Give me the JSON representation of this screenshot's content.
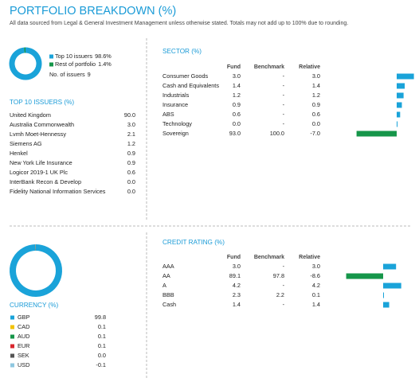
{
  "header": {
    "title": "PORTFOLIO BREAKDOWN (%)",
    "note": "All data sourced from Legal & General Investment Management unless otherwise stated. Totals may not add up to 100% due to rounding."
  },
  "positive_color": "#1aa3d9",
  "negative_color": "#16964a",
  "issuers_split": {
    "items": [
      {
        "name": "Top 10 issuers",
        "value": 98.6,
        "label": "98.6%",
        "color": "#1aa3d9"
      },
      {
        "name": "Rest of portfolio",
        "value": 1.4,
        "label": "1.4%",
        "color": "#16964a"
      }
    ],
    "count_label": "No. of issuers",
    "count": 9
  },
  "top10": {
    "title": "TOP 10 ISSUERS (%)",
    "rows": [
      {
        "name": "United Kingdom",
        "value": "90.0"
      },
      {
        "name": "Australia Commonwealth",
        "value": "3.0"
      },
      {
        "name": "Lvmh Moet-Hennessy",
        "value": "2.1"
      },
      {
        "name": "Siemens AG",
        "value": "1.2"
      },
      {
        "name": "Henkel",
        "value": "0.9"
      },
      {
        "name": "New York Life Insurance",
        "value": "0.9"
      },
      {
        "name": "Logicor 2019-1 UK Plc",
        "value": "0.6"
      },
      {
        "name": "InterBank Recon & Develop",
        "value": "0.0"
      },
      {
        "name": "Fidelity National Information Services",
        "value": "0.0"
      }
    ]
  },
  "sector": {
    "title": "SECTOR (%)",
    "columns": [
      "Fund",
      "Benchmark",
      "Relative"
    ],
    "rows": [
      {
        "name": "Consumer Goods",
        "fund": "3.0",
        "benchmark": "-",
        "relative": {
          "value": 3.0,
          "label": "3.0"
        }
      },
      {
        "name": "Cash and Equivalents",
        "fund": "1.4",
        "benchmark": "-",
        "relative": {
          "value": 1.4,
          "label": "1.4"
        }
      },
      {
        "name": "Industrials",
        "fund": "1.2",
        "benchmark": "-",
        "relative": {
          "value": 1.2,
          "label": "1.2"
        }
      },
      {
        "name": "Insurance",
        "fund": "0.9",
        "benchmark": "-",
        "relative": {
          "value": 0.9,
          "label": "0.9"
        }
      },
      {
        "name": "ABS",
        "fund": "0.6",
        "benchmark": "-",
        "relative": {
          "value": 0.6,
          "label": "0.6"
        }
      },
      {
        "name": "Technology",
        "fund": "0.0",
        "benchmark": "-",
        "relative": {
          "value": 0.0,
          "label": "0.0"
        }
      },
      {
        "name": "Sovereign",
        "fund": "93.0",
        "benchmark": "100.0",
        "relative": {
          "value": -7.0,
          "label": "-7.0"
        }
      }
    ]
  },
  "credit": {
    "title": "CREDIT RATING (%)",
    "columns": [
      "Fund",
      "Benchmark",
      "Relative"
    ],
    "rows": [
      {
        "name": "AAA",
        "fund": "3.0",
        "benchmark": "-",
        "relative": {
          "value": 3.0,
          "label": "3.0"
        }
      },
      {
        "name": "AA",
        "fund": "89.1",
        "benchmark": "97.8",
        "relative": {
          "value": -8.6,
          "label": "-8.6"
        }
      },
      {
        "name": "A",
        "fund": "4.2",
        "benchmark": "-",
        "relative": {
          "value": 4.2,
          "label": "4.2"
        }
      },
      {
        "name": "BBB",
        "fund": "2.3",
        "benchmark": "2.2",
        "relative": {
          "value": 0.1,
          "label": "0.1"
        }
      },
      {
        "name": "Cash",
        "fund": "1.4",
        "benchmark": "-",
        "relative": {
          "value": 1.4,
          "label": "1.4"
        }
      }
    ]
  },
  "currency": {
    "title": "CURRENCY (%)",
    "rows": [
      {
        "name": "GBP",
        "value": 99.8,
        "label": "99.8",
        "color": "#1aa3d9"
      },
      {
        "name": "CAD",
        "value": 0.1,
        "label": "0.1",
        "color": "#f2c200"
      },
      {
        "name": "AUD",
        "value": 0.1,
        "label": "0.1",
        "color": "#16964a"
      },
      {
        "name": "EUR",
        "value": 0.1,
        "label": "0.1",
        "color": "#d9262e"
      },
      {
        "name": "SEK",
        "value": 0.0,
        "label": "0.0",
        "color": "#555555"
      },
      {
        "name": "USD",
        "value": -0.1,
        "label": "-0.1",
        "color": "#8fc7e0"
      }
    ]
  }
}
